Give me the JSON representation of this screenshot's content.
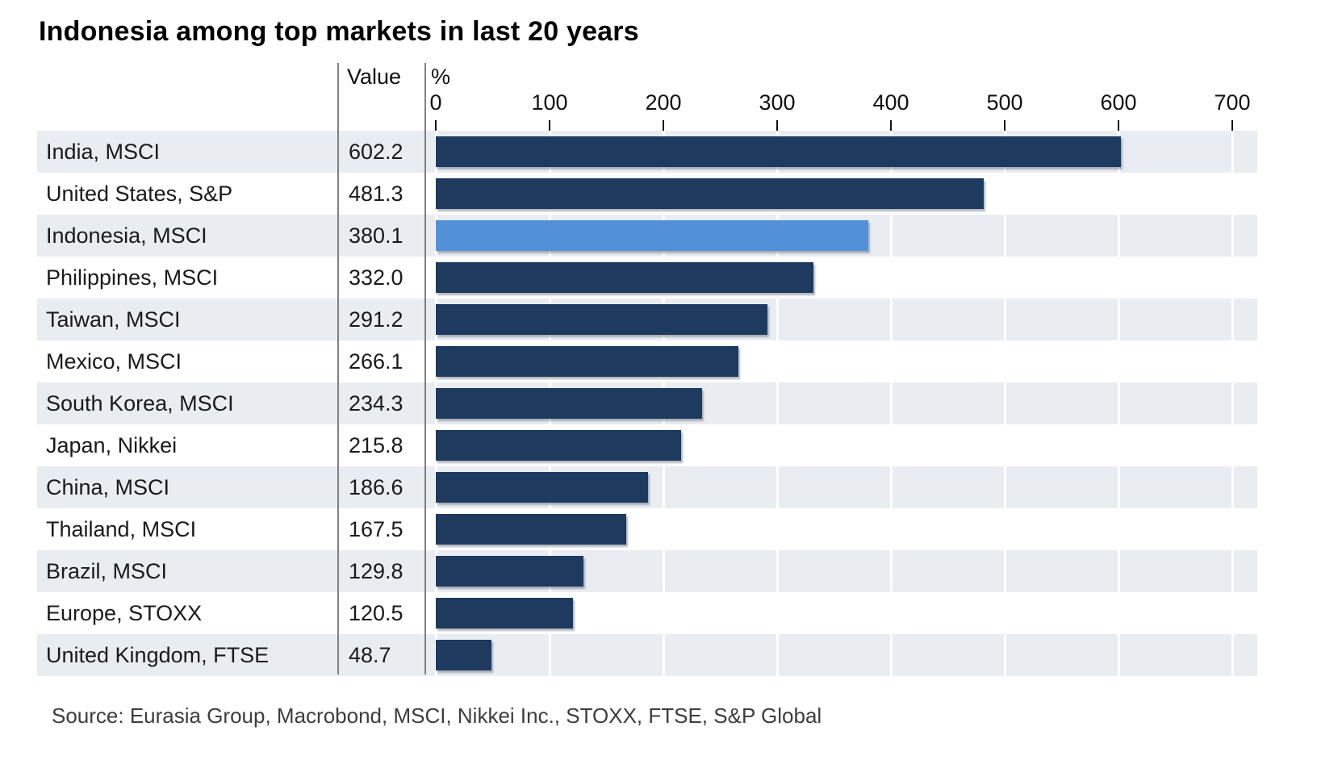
{
  "title": "Indonesia among top markets in last 20 years",
  "table_headers": {
    "value": "Value",
    "percent": "%"
  },
  "source": "Source: Eurasia Group, Macrobond, MSCI, Nikkei Inc., STOXX, FTSE, S&P Global",
  "colors": {
    "bar": "#1e3a5e",
    "highlight_bar": "#5291d8",
    "row_stripe": "#e9edf2",
    "divider": "#7f7f7f"
  },
  "chart_data": {
    "type": "bar",
    "orientation": "horizontal",
    "title": "Indonesia among top markets in last 20 years",
    "xlabel": "%",
    "xlim": [
      0,
      700
    ],
    "xticks": [
      0,
      100,
      200,
      300,
      400,
      500,
      600,
      700
    ],
    "grid": true,
    "categories": [
      "India, MSCI",
      "United States, S&P",
      "Indonesia, MSCI",
      "Philippines, MSCI",
      "Taiwan, MSCI",
      "Mexico, MSCI",
      "South Korea, MSCI",
      "Japan, Nikkei",
      "China, MSCI",
      "Thailand, MSCI",
      "Brazil, MSCI",
      "Europe, STOXX",
      "United Kingdom, FTSE"
    ],
    "values": [
      602.2,
      481.3,
      380.1,
      332.0,
      291.2,
      266.1,
      234.3,
      215.8,
      186.6,
      167.5,
      129.8,
      120.5,
      48.7
    ],
    "value_labels": [
      "602.2",
      "481.3",
      "380.1",
      "332.0",
      "291.2",
      "266.1",
      "234.3",
      "215.8",
      "186.6",
      "167.5",
      "129.8",
      "120.5",
      "48.7"
    ],
    "highlight_index": 2
  }
}
